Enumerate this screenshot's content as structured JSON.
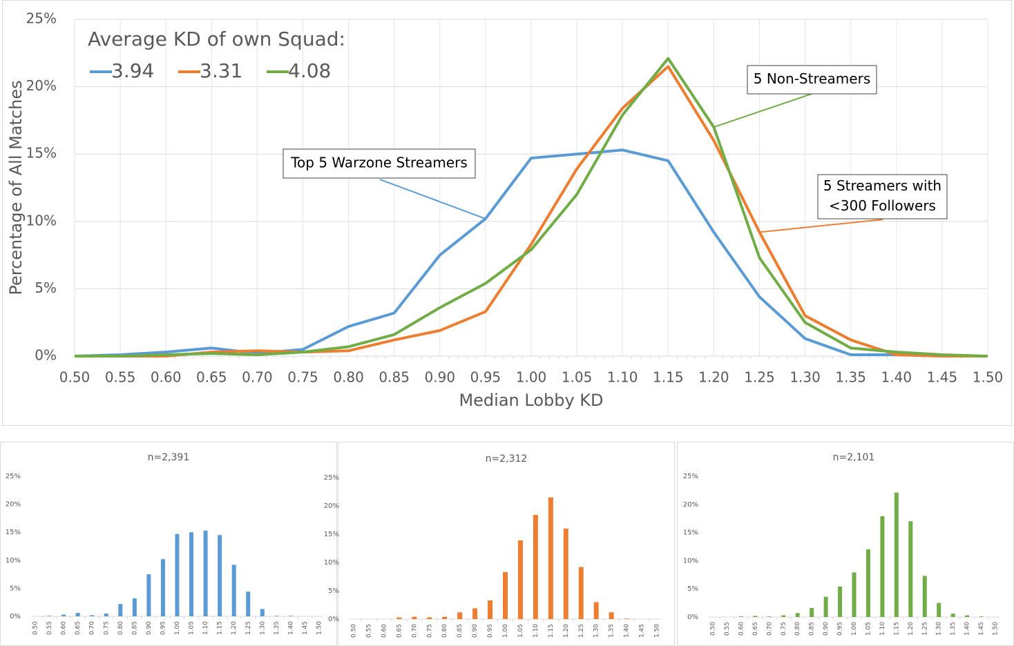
{
  "chart_data": [
    {
      "type": "line",
      "x_label": "Median Lobby KD",
      "y_label": "Percentage of All Matches",
      "legend_title": "Average KD of own Squad:",
      "categories": [
        "0.50",
        "0.55",
        "0.60",
        "0.65",
        "0.70",
        "0.75",
        "0.80",
        "0.85",
        "0.90",
        "0.95",
        "1.00",
        "1.05",
        "1.10",
        "1.15",
        "1.20",
        "1.25",
        "1.30",
        "1.35",
        "1.40",
        "1.45",
        "1.50"
      ],
      "series": [
        {
          "name": "3.94",
          "color": "#5b9bd5",
          "values": [
            0.0,
            0.1,
            0.3,
            0.6,
            0.2,
            0.5,
            2.2,
            3.2,
            7.5,
            10.2,
            14.7,
            15.0,
            15.3,
            14.5,
            9.2,
            4.4,
            1.3,
            0.1,
            0.1,
            0.0,
            0.0
          ]
        },
        {
          "name": "3.31",
          "color": "#ed7d31",
          "values": [
            0.0,
            0.0,
            0.0,
            0.3,
            0.4,
            0.3,
            0.4,
            1.2,
            1.9,
            3.3,
            8.3,
            13.9,
            18.4,
            21.5,
            16.0,
            9.2,
            3.0,
            1.2,
            0.1,
            0.0,
            0.0
          ]
        },
        {
          "name": "4.08",
          "color": "#70ad47",
          "values": [
            0.0,
            0.0,
            0.1,
            0.2,
            0.1,
            0.3,
            0.7,
            1.6,
            3.6,
            5.4,
            7.9,
            12.0,
            17.9,
            22.1,
            17.0,
            7.3,
            2.5,
            0.6,
            0.3,
            0.1,
            0.0
          ]
        }
      ],
      "annotations": [
        {
          "text": [
            "Top 5 Warzone Streamers"
          ]
        },
        {
          "text": [
            "5 Non-Streamers"
          ]
        },
        {
          "text": [
            "5 Streamers with",
            "<300 Followers"
          ]
        }
      ],
      "ylim": [
        0,
        25
      ],
      "yticks": [
        {
          "value": 0,
          "label": "0%"
        },
        {
          "value": 5,
          "label": "5%"
        },
        {
          "value": 10,
          "label": "10%"
        },
        {
          "value": 15,
          "label": "15%"
        },
        {
          "value": 20,
          "label": "20%"
        },
        {
          "value": 25,
          "label": "25%"
        }
      ],
      "grid": true
    },
    {
      "type": "bar",
      "title": "n=2,391",
      "color": "#5b9bd5",
      "categories": [
        "0.50",
        "0.55",
        "0.60",
        "0.65",
        "0.70",
        "0.75",
        "0.80",
        "0.85",
        "0.90",
        "0.95",
        "1.00",
        "1.05",
        "1.10",
        "1.15",
        "1.20",
        "1.25",
        "1.30",
        "1.35",
        "1.40",
        "1.45",
        "1.50"
      ],
      "values": [
        0.0,
        0.1,
        0.3,
        0.6,
        0.2,
        0.5,
        2.2,
        3.2,
        7.5,
        10.2,
        14.7,
        15.0,
        15.3,
        14.5,
        9.2,
        4.4,
        1.3,
        0.1,
        0.1,
        0.0,
        0.0
      ],
      "ylim": [
        0,
        25
      ],
      "yticks": [
        {
          "value": 0,
          "label": "0%"
        },
        {
          "value": 5,
          "label": "5%"
        },
        {
          "value": 10,
          "label": "10%"
        },
        {
          "value": 15,
          "label": "15%"
        },
        {
          "value": 20,
          "label": "20%"
        },
        {
          "value": 25,
          "label": "25%"
        }
      ],
      "grid": false
    },
    {
      "type": "bar",
      "title": "n=2,312",
      "color": "#ed7d31",
      "categories": [
        "0.50",
        "0.55",
        "0.60",
        "0.65",
        "0.70",
        "0.75",
        "0.80",
        "0.85",
        "0.90",
        "0.95",
        "1.00",
        "1.05",
        "1.10",
        "1.15",
        "1.20",
        "1.25",
        "1.30",
        "1.35",
        "1.40",
        "1.45",
        "1.50"
      ],
      "values": [
        0.0,
        0.0,
        0.0,
        0.3,
        0.4,
        0.3,
        0.4,
        1.2,
        1.9,
        3.3,
        8.3,
        13.9,
        18.4,
        21.5,
        16.0,
        9.2,
        3.0,
        1.2,
        0.1,
        0.0,
        0.0
      ],
      "ylim": [
        0,
        25
      ],
      "yticks": [
        {
          "value": 0,
          "label": "0%"
        },
        {
          "value": 5,
          "label": "5%"
        },
        {
          "value": 10,
          "label": "10%"
        },
        {
          "value": 15,
          "label": "15%"
        },
        {
          "value": 20,
          "label": "20%"
        },
        {
          "value": 25,
          "label": "25%"
        }
      ],
      "grid": false
    },
    {
      "type": "bar",
      "title": "n=2,101",
      "color": "#70ad47",
      "categories": [
        "0.50",
        "0.55",
        "0.60",
        "0.65",
        "0.70",
        "0.75",
        "0.80",
        "0.85",
        "0.90",
        "0.95",
        "1.00",
        "1.05",
        "1.10",
        "1.15",
        "1.20",
        "1.25",
        "1.30",
        "1.35",
        "1.40",
        "1.45",
        "1.50"
      ],
      "values": [
        0.0,
        0.0,
        0.1,
        0.2,
        0.1,
        0.3,
        0.7,
        1.6,
        3.6,
        5.4,
        7.9,
        12.0,
        17.9,
        22.1,
        17.0,
        7.3,
        2.5,
        0.6,
        0.3,
        0.1,
        0.0
      ],
      "ylim": [
        0,
        25
      ],
      "yticks": [
        {
          "value": 0,
          "label": "0%"
        },
        {
          "value": 5,
          "label": "5%"
        },
        {
          "value": 10,
          "label": "10%"
        },
        {
          "value": 15,
          "label": "15%"
        },
        {
          "value": 20,
          "label": "20%"
        },
        {
          "value": 25,
          "label": "25%"
        }
      ],
      "grid": false
    }
  ]
}
